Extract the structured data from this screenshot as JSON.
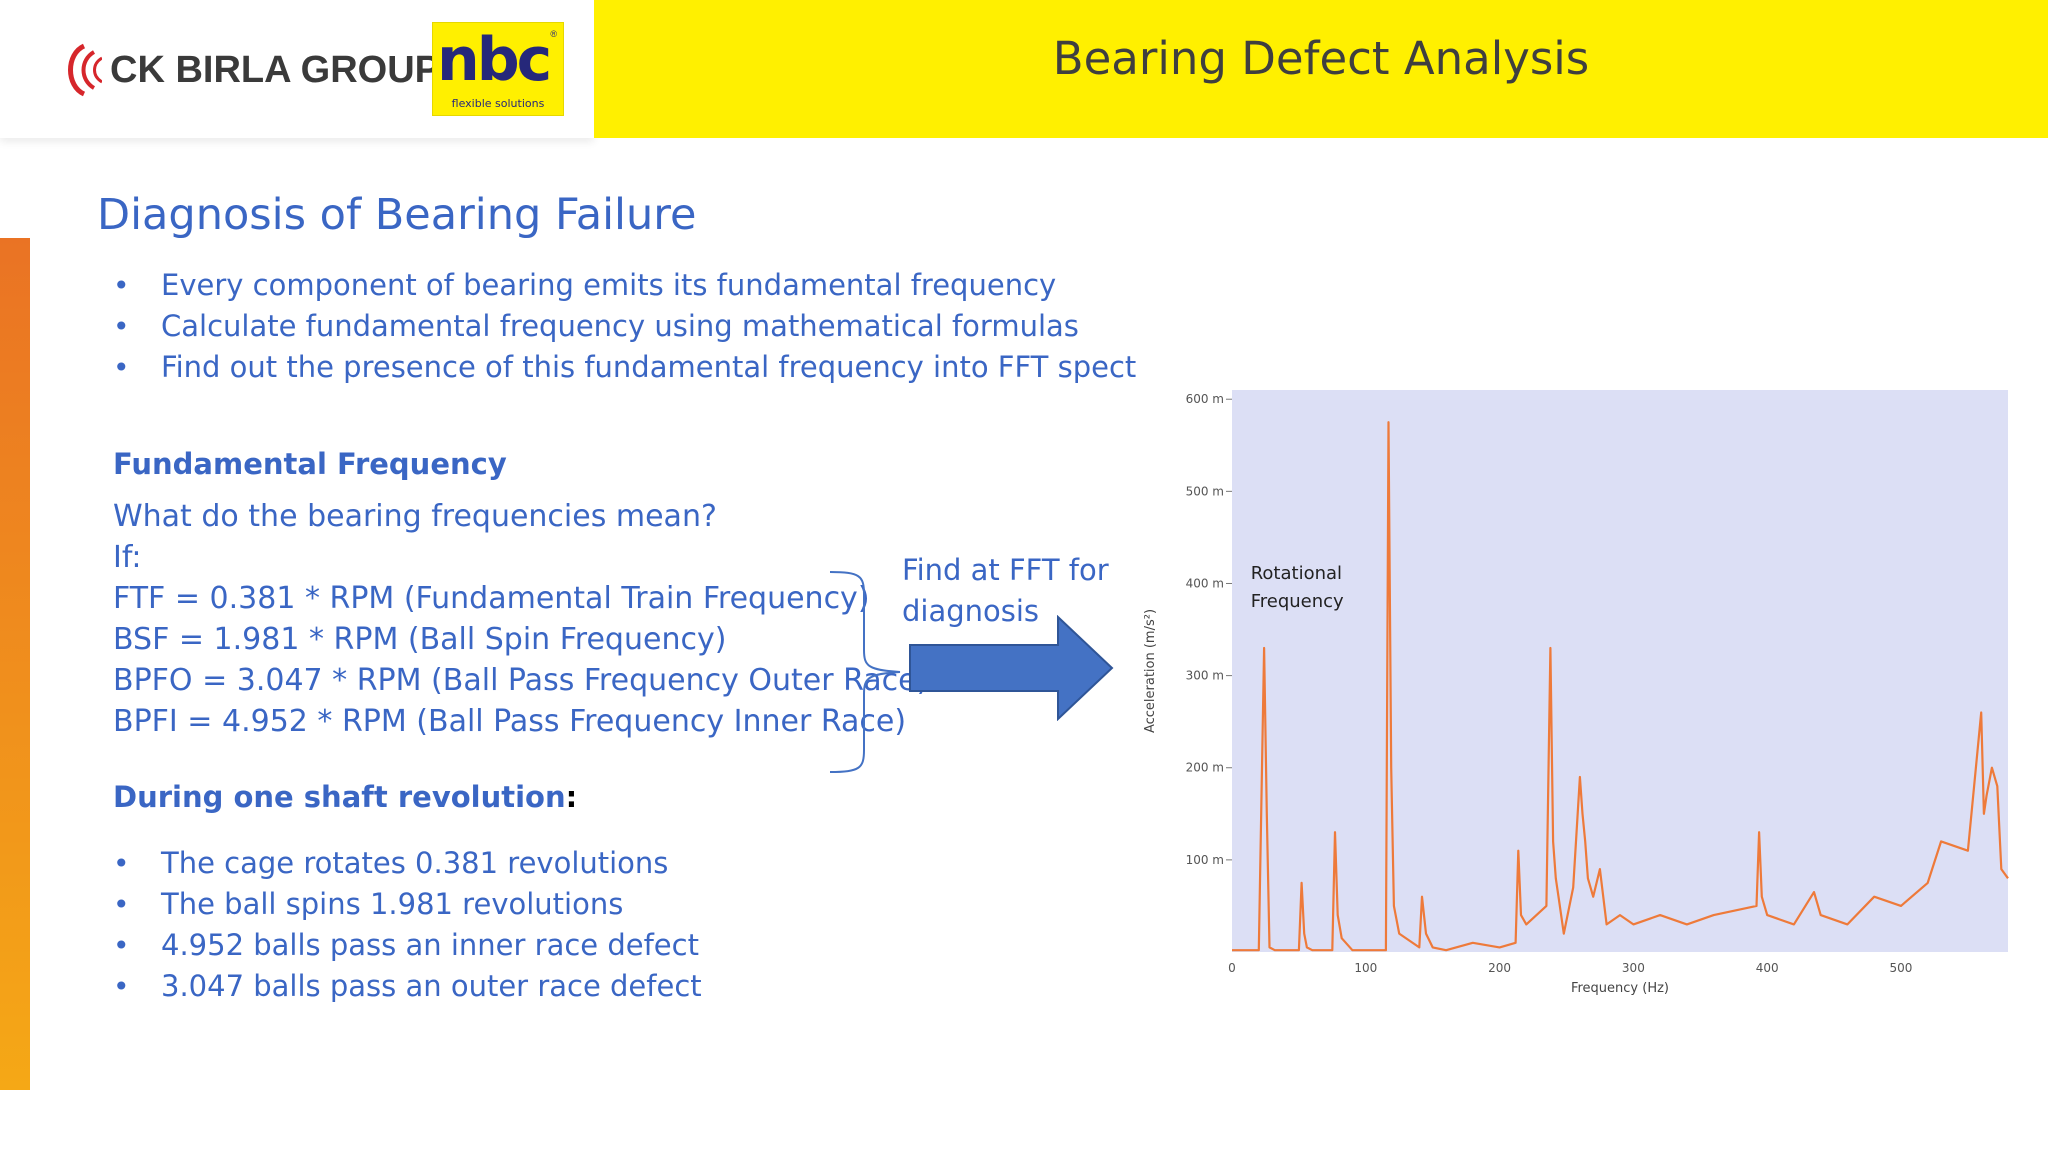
{
  "header": {
    "title": "Bearing Defect Analysis",
    "logo_group": "CK BIRLA GROUP",
    "logo_brand": "nbc",
    "logo_tagline": "flexible solutions"
  },
  "section_title": "Diagnosis of Bearing Failure",
  "intro_bullets": [
    "Every component of bearing emits its fundamental frequency",
    "Calculate fundamental frequency using mathematical formulas",
    "Find out the presence of this fundamental frequency into FFT spectrum"
  ],
  "fundamental": {
    "heading": "Fundamental Frequency",
    "question": "What do the bearing frequencies mean?",
    "if_label": "If:",
    "formulas": [
      "FTF = 0.381 * RPM (Fundamental Train Frequency)",
      "BSF = 1.981 * RPM (Ball Spin Frequency)",
      "BPFO = 3.047 * RPM (Ball Pass Frequency Outer Race)",
      "BPFI = 4.952 * RPM (Ball Pass Frequency Inner Race)"
    ]
  },
  "find_note": "Find at FFT for diagnosis",
  "revolution": {
    "heading": "During one shaft revolution",
    "colon": ":",
    "bullets": [
      "The cage rotates 0.381 revolutions",
      "The ball spins 1.981 revolutions",
      "4.952 balls pass an inner race defect",
      "3.047 balls pass an outer race defect"
    ]
  },
  "colors": {
    "header_yellow": "#fff000",
    "text_blue": "#3a66c4",
    "arrow_blue": "#4472c4",
    "spectrum_orange": "#ee7a3a",
    "plot_bg": "#dcdff5"
  },
  "chart_data": {
    "type": "line",
    "xlabel": "Frequency (Hz)",
    "ylabel": "Acceleration (m/s²)",
    "x_ticks": [
      "0",
      "100",
      "200",
      "300",
      "400",
      "500"
    ],
    "y_ticks": [
      "100 m",
      "200 m",
      "300 m",
      "400 m",
      "500 m",
      "600 m"
    ],
    "xlim": [
      0,
      580
    ],
    "ylim": [
      0,
      610
    ],
    "annotation": "Rotational Frequency",
    "series": [
      {
        "x": [
          0,
          20,
          24,
          26,
          28,
          32,
          50,
          52,
          54,
          56,
          60,
          75,
          77,
          79,
          82,
          90,
          100,
          115,
          117,
          119,
          121,
          125,
          140,
          142,
          145,
          150,
          160,
          180,
          200,
          212,
          214,
          216,
          220,
          235,
          238,
          240,
          242,
          244,
          248,
          255,
          260,
          262,
          264,
          266,
          270,
          275,
          280,
          290,
          300,
          320,
          340,
          360,
          392,
          394,
          396,
          400,
          420,
          435,
          440,
          460,
          480,
          500,
          520,
          530,
          550,
          560,
          562,
          564,
          568,
          572,
          575,
          580
        ],
        "values": [
          2,
          2,
          330,
          150,
          5,
          2,
          2,
          75,
          20,
          5,
          2,
          2,
          130,
          40,
          15,
          2,
          2,
          2,
          575,
          200,
          50,
          20,
          5,
          60,
          20,
          5,
          2,
          10,
          5,
          10,
          110,
          40,
          30,
          50,
          330,
          120,
          80,
          60,
          20,
          70,
          190,
          150,
          120,
          80,
          60,
          90,
          30,
          40,
          30,
          40,
          30,
          40,
          50,
          130,
          60,
          40,
          30,
          65,
          40,
          30,
          60,
          50,
          75,
          120,
          110,
          260,
          150,
          170,
          200,
          180,
          90,
          80
        ]
      }
    ]
  }
}
